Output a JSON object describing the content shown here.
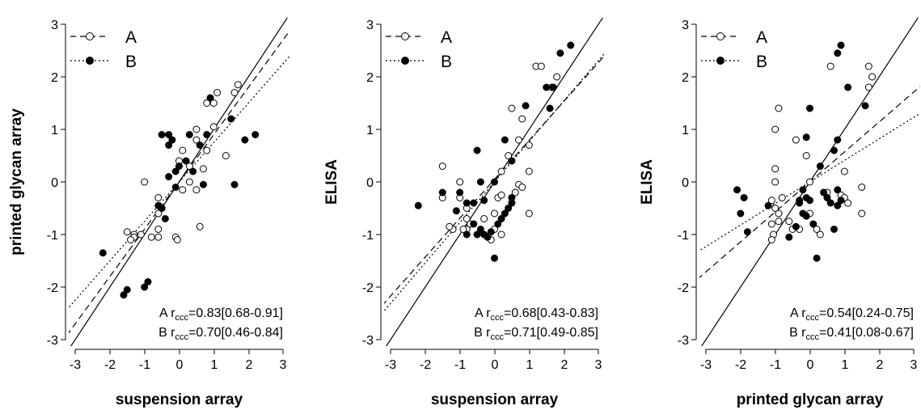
{
  "chart_data": [
    {
      "type": "scatter",
      "xlabel": "suspension array",
      "ylabel": "printed glycan array",
      "xlim": [
        -3,
        3
      ],
      "ylim": [
        -3,
        3
      ],
      "xticks": [
        "-3",
        "-2",
        "-1",
        "0",
        "1",
        "2",
        "3"
      ],
      "yticks": [
        "-3",
        "-2",
        "-1",
        "0",
        "1",
        "2",
        "3"
      ],
      "grid": false,
      "legend_position": "top-left",
      "series": [
        {
          "name": "A",
          "marker": "open-circle",
          "line_style": "dashed",
          "fit": {
            "slope": 0.9,
            "intercept": 0.0
          },
          "points": [
            [
              1.7,
              1.85
            ],
            [
              1.6,
              1.7
            ],
            [
              1.1,
              1.7
            ],
            [
              0.8,
              1.5
            ],
            [
              1.0,
              1.5
            ],
            [
              1.0,
              1.05
            ],
            [
              1.35,
              0.5
            ],
            [
              0.5,
              1.0
            ],
            [
              0.5,
              0.8
            ],
            [
              0.8,
              0.6
            ],
            [
              0.7,
              0.25
            ],
            [
              0.3,
              0.3
            ],
            [
              0.0,
              0.4
            ],
            [
              0.1,
              0.6
            ],
            [
              -1.0,
              0.0
            ],
            [
              0.3,
              -0.0
            ],
            [
              0.5,
              -0.15
            ],
            [
              0.1,
              -0.15
            ],
            [
              -0.6,
              -0.3
            ],
            [
              -0.5,
              -0.5
            ],
            [
              -0.6,
              -0.6
            ],
            [
              -0.6,
              -0.9
            ],
            [
              -0.8,
              -1.05
            ],
            [
              -0.6,
              -1.05
            ],
            [
              -1.1,
              -1.0
            ],
            [
              -1.3,
              -1.0
            ],
            [
              -1.3,
              -1.05
            ],
            [
              -1.5,
              -0.95
            ],
            [
              -1.4,
              -1.1
            ],
            [
              -0.1,
              -1.05
            ],
            [
              -0.05,
              -1.1
            ],
            [
              0.6,
              -0.85
            ]
          ]
        },
        {
          "name": "B",
          "marker": "filled-circle",
          "line_style": "dotted",
          "fit": {
            "slope": 0.75,
            "intercept": 0.0
          },
          "points": [
            [
              0.9,
              1.6
            ],
            [
              1.5,
              1.2
            ],
            [
              2.2,
              0.9
            ],
            [
              1.9,
              0.8
            ],
            [
              0.8,
              0.9
            ],
            [
              0.3,
              0.9
            ],
            [
              -0.3,
              0.9
            ],
            [
              -0.5,
              0.9
            ],
            [
              -0.2,
              0.8
            ],
            [
              -0.3,
              0.7
            ],
            [
              0.6,
              0.7
            ],
            [
              0.2,
              0.4
            ],
            [
              0.0,
              0.3
            ],
            [
              0.4,
              0.2
            ],
            [
              -0.1,
              0.2
            ],
            [
              -0.3,
              0.1
            ],
            [
              -0.1,
              -0.1
            ],
            [
              0.7,
              -0.05
            ],
            [
              1.6,
              -0.05
            ],
            [
              -0.6,
              -0.45
            ],
            [
              -0.5,
              -0.5
            ],
            [
              -0.4,
              -0.7
            ],
            [
              -2.2,
              -1.35
            ],
            [
              -1.5,
              -2.05
            ],
            [
              -1.6,
              -2.15
            ],
            [
              -0.9,
              -1.9
            ],
            [
              -1.0,
              -2.0
            ]
          ]
        }
      ],
      "reference_line": {
        "slope": 1,
        "intercept": 0
      },
      "annotations": [
        {
          "series": "A",
          "prefix": "A r",
          "subscript": "ccc",
          "value": "=0.83[0.68-0.91]"
        },
        {
          "series": "B",
          "prefix": "B r",
          "subscript": "ccc",
          "value": "=0.70[0.46-0.84]"
        }
      ]
    },
    {
      "type": "scatter",
      "xlabel": "suspension array",
      "ylabel": "ELISA",
      "xlim": [
        -3,
        3
      ],
      "ylim": [
        -3,
        3
      ],
      "xticks": [
        "-3",
        "-2",
        "-1",
        "0",
        "1",
        "2",
        "3"
      ],
      "yticks": [
        "-3",
        "-2",
        "-1",
        "0",
        "1",
        "2",
        "3"
      ],
      "grid": false,
      "legend_position": "top-left",
      "series": [
        {
          "name": "A",
          "marker": "open-circle",
          "line_style": "dashed",
          "fit": {
            "slope": 0.74,
            "intercept": 0.05
          },
          "points": [
            [
              1.2,
              2.2
            ],
            [
              1.35,
              2.2
            ],
            [
              1.8,
              2.0
            ],
            [
              1.65,
              1.8
            ],
            [
              0.5,
              1.4
            ],
            [
              0.8,
              1.2
            ],
            [
              0.7,
              0.8
            ],
            [
              1.0,
              0.7
            ],
            [
              0.4,
              0.5
            ],
            [
              1.0,
              0.2
            ],
            [
              -1.5,
              0.3
            ],
            [
              0.2,
              0.2
            ],
            [
              0.7,
              -0.05
            ],
            [
              0.8,
              -0.1
            ],
            [
              -1.5,
              -0.3
            ],
            [
              -1.0,
              -0.3
            ],
            [
              0.1,
              -0.3
            ],
            [
              0.6,
              -0.2
            ],
            [
              -0.8,
              -0.5
            ],
            [
              -0.8,
              -0.7
            ],
            [
              -0.7,
              -0.8
            ],
            [
              -1.2,
              -0.9
            ],
            [
              -0.8,
              -0.9
            ],
            [
              -0.3,
              -0.7
            ],
            [
              0.0,
              -0.6
            ],
            [
              1.0,
              -0.6
            ],
            [
              0.0,
              -0.9
            ],
            [
              0.2,
              -1.0
            ],
            [
              -0.1,
              -1.1
            ],
            [
              -1.3,
              -0.85
            ],
            [
              -0.9,
              -0.9
            ],
            [
              0.2,
              -0.25
            ],
            [
              -1.0,
              0.0
            ]
          ]
        },
        {
          "name": "B",
          "marker": "filled-circle",
          "line_style": "dotted",
          "fit": {
            "slope": 0.77,
            "intercept": 0.0
          },
          "points": [
            [
              2.2,
              2.6
            ],
            [
              1.9,
              2.45
            ],
            [
              1.5,
              1.8
            ],
            [
              1.7,
              1.8
            ],
            [
              1.6,
              1.4
            ],
            [
              0.9,
              1.45
            ],
            [
              0.3,
              0.8
            ],
            [
              -0.5,
              0.6
            ],
            [
              0.5,
              0.4
            ],
            [
              -0.4,
              0.0
            ],
            [
              0.0,
              0.0
            ],
            [
              -1.0,
              -0.2
            ],
            [
              -1.5,
              -0.2
            ],
            [
              -0.8,
              -0.4
            ],
            [
              -0.6,
              -0.4
            ],
            [
              -0.3,
              -0.35
            ],
            [
              0.5,
              -0.3
            ],
            [
              0.5,
              -0.4
            ],
            [
              0.4,
              -0.5
            ],
            [
              0.3,
              -0.6
            ],
            [
              0.2,
              -0.7
            ],
            [
              0.1,
              -0.8
            ],
            [
              -0.6,
              -0.8
            ],
            [
              -0.4,
              -0.9
            ],
            [
              -0.1,
              -0.95
            ],
            [
              -0.5,
              -1.0
            ],
            [
              -0.3,
              -1.0
            ],
            [
              -0.2,
              -1.05
            ],
            [
              0.0,
              -1.45
            ],
            [
              -2.2,
              -0.45
            ],
            [
              -1.1,
              -0.55
            ],
            [
              -0.8,
              -1.0
            ]
          ]
        }
      ],
      "reference_line": {
        "slope": 1,
        "intercept": 0
      },
      "annotations": [
        {
          "series": "A",
          "prefix": "A r",
          "subscript": "ccc",
          "value": "=0.68[0.43-0.83]"
        },
        {
          "series": "B",
          "prefix": "B r",
          "subscript": "ccc",
          "value": "=0.71[0.49-0.85]"
        }
      ]
    },
    {
      "type": "scatter",
      "xlabel": "printed glycan array",
      "ylabel": "ELISA",
      "xlim": [
        -3,
        3
      ],
      "ylim": [
        -3,
        3
      ],
      "xticks": [
        "-3",
        "-2",
        "-1",
        "0",
        "1",
        "2",
        "3"
      ],
      "yticks": [
        "-3",
        "-2",
        "-1",
        "0",
        "1",
        "2",
        "3"
      ],
      "grid": false,
      "legend_position": "top-left",
      "series": [
        {
          "name": "A",
          "marker": "open-circle",
          "line_style": "dashed",
          "fit": {
            "slope": 0.57,
            "intercept": 0.0
          },
          "points": [
            [
              1.7,
              2.2
            ],
            [
              1.8,
              2.0
            ],
            [
              0.6,
              2.2
            ],
            [
              1.7,
              1.8
            ],
            [
              -0.9,
              1.4
            ],
            [
              -1.0,
              1.0
            ],
            [
              -0.4,
              0.8
            ],
            [
              -0.1,
              0.5
            ],
            [
              -1.0,
              0.25
            ],
            [
              -1.0,
              0.0
            ],
            [
              0.0,
              0.0
            ],
            [
              1.0,
              0.2
            ],
            [
              0.9,
              -0.25
            ],
            [
              1.0,
              -0.3
            ],
            [
              0.0,
              -0.6
            ],
            [
              0.5,
              -0.2
            ],
            [
              -0.8,
              -0.3
            ],
            [
              -1.1,
              -0.35
            ],
            [
              -1.0,
              -0.5
            ],
            [
              -0.9,
              -0.6
            ],
            [
              -0.9,
              -0.75
            ],
            [
              -1.1,
              -0.8
            ],
            [
              -1.05,
              -1.0
            ],
            [
              -1.1,
              -1.1
            ],
            [
              -0.6,
              -0.75
            ],
            [
              -0.5,
              -0.9
            ],
            [
              -0.3,
              -0.9
            ],
            [
              0.2,
              -0.9
            ],
            [
              0.3,
              -1.0
            ],
            [
              1.1,
              -0.4
            ],
            [
              1.5,
              -0.6
            ],
            [
              1.5,
              -0.1
            ]
          ]
        },
        {
          "name": "B",
          "marker": "filled-circle",
          "line_style": "dotted",
          "fit": {
            "slope": 0.41,
            "intercept": 0.0
          },
          "points": [
            [
              0.9,
              2.6
            ],
            [
              0.8,
              2.45
            ],
            [
              1.1,
              1.8
            ],
            [
              1.6,
              1.45
            ],
            [
              0.0,
              1.4
            ],
            [
              -0.1,
              0.85
            ],
            [
              0.8,
              0.8
            ],
            [
              0.7,
              0.6
            ],
            [
              0.3,
              0.3
            ],
            [
              0.5,
              -0.3
            ],
            [
              0.6,
              -0.4
            ],
            [
              0.8,
              -0.45
            ],
            [
              0.9,
              -0.35
            ],
            [
              0.8,
              -0.15
            ],
            [
              0.4,
              -0.2
            ],
            [
              0.0,
              -0.35
            ],
            [
              -0.3,
              -0.35
            ],
            [
              -0.1,
              -0.3
            ],
            [
              -0.2,
              -0.6
            ],
            [
              -0.3,
              -0.4
            ],
            [
              -0.1,
              -0.65
            ],
            [
              0.1,
              -0.8
            ],
            [
              -0.4,
              -0.85
            ],
            [
              -0.6,
              -1.05
            ],
            [
              -1.2,
              -0.45
            ],
            [
              -1.9,
              -0.3
            ],
            [
              -2.1,
              -0.15
            ],
            [
              -2.0,
              -0.6
            ],
            [
              -1.8,
              -0.95
            ],
            [
              0.2,
              -1.45
            ],
            [
              0.7,
              -0.9
            ],
            [
              -0.2,
              -0.15
            ]
          ]
        }
      ],
      "reference_line": {
        "slope": 1,
        "intercept": 0
      },
      "annotations": [
        {
          "series": "A",
          "prefix": "A r",
          "subscript": "ccc",
          "value": "=0.54[0.24-0.75]"
        },
        {
          "series": "B",
          "prefix": "B r",
          "subscript": "ccc",
          "value": "=0.41[0.08-0.67]"
        }
      ]
    }
  ]
}
